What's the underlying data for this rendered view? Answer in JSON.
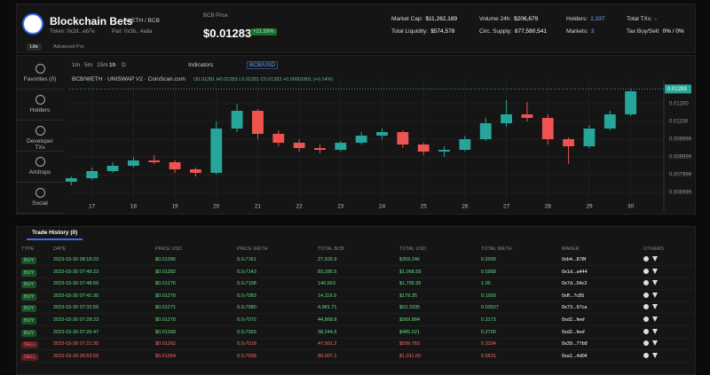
{
  "header": {
    "title": "Blockchain Bets",
    "pair": "WETH / BCB",
    "token": "Token: 0x2d...eb7e",
    "pair_address": "Pair: 0x3b...4a8a",
    "tabs": [
      "Lite",
      "Advanced",
      "Pro"
    ],
    "price_label": "BCB Price",
    "price": "$0.01283",
    "change": "+21.59%"
  },
  "stats": [
    {
      "label": "Market Cap:",
      "value": "$11,262,189"
    },
    {
      "label": "Total Liquidity:",
      "value": "$574,578"
    },
    {
      "label": "Volume 24h:",
      "value": "$206,679"
    },
    {
      "label": "Circ. Supply:",
      "value": "877,580,541"
    },
    {
      "label": "Holders:",
      "value": "2,337"
    },
    {
      "label": "Markets:",
      "value": "3"
    },
    {
      "label": "Total TXs:",
      "value": "-"
    },
    {
      "label": "Tax Buy/Sell:",
      "value": "0% / 0%"
    }
  ],
  "sidebar": [
    "Favorites (0)",
    "Holders",
    "Developer TXs",
    "Airdrops",
    "Social"
  ],
  "toolbar": {
    "intervals": [
      "1m",
      "5m",
      "15m",
      "1h",
      "D"
    ],
    "indicators": "Indicators",
    "quote": "BCB/USD"
  },
  "chart_data": {
    "type": "candlestick",
    "title": "BCB/WETH · UNISWAP V2 · CoinScan.com",
    "subtitle": "O0.01281 H0.01283 L0.01281 C0.01283 +0.00001801 (+0.14%)",
    "x": [
      16.5,
      17,
      17.5,
      18,
      18.5,
      19,
      19.5,
      20,
      20.5,
      21,
      21.5,
      22,
      22.5,
      23,
      23.5,
      24,
      24.5,
      25,
      25.5,
      26,
      26.5,
      27,
      27.5,
      28,
      28.5,
      29,
      29.5,
      30
    ],
    "open": [
      0.0076,
      0.0078,
      0.0082,
      0.0085,
      0.0088,
      0.0087,
      0.0083,
      0.0081,
      0.0106,
      0.0116,
      0.0103,
      0.0098,
      0.0095,
      0.0094,
      0.0098,
      0.0102,
      0.0104,
      0.0097,
      0.0093,
      0.0094,
      0.01,
      0.0109,
      0.0114,
      0.0112,
      0.01,
      0.0096,
      0.0106,
      0.0114
    ],
    "high": [
      0.0079,
      0.0084,
      0.0087,
      0.009,
      0.0091,
      0.0088,
      0.0084,
      0.011,
      0.012,
      0.0117,
      0.0105,
      0.01,
      0.0097,
      0.0099,
      0.0104,
      0.0106,
      0.0105,
      0.0098,
      0.0096,
      0.0102,
      0.0112,
      0.0122,
      0.0121,
      0.0114,
      0.0101,
      0.0108,
      0.0116,
      0.0128
    ],
    "low": [
      0.0074,
      0.0077,
      0.0081,
      0.0084,
      0.0086,
      0.0081,
      0.0079,
      0.008,
      0.0104,
      0.01,
      0.0096,
      0.0093,
      0.0092,
      0.0093,
      0.0097,
      0.01,
      0.0095,
      0.0091,
      0.009,
      0.0093,
      0.0099,
      0.0107,
      0.011,
      0.0097,
      0.0086,
      0.0095,
      0.0105,
      0.0113
    ],
    "close": [
      0.0078,
      0.0082,
      0.0085,
      0.0088,
      0.0087,
      0.0083,
      0.0081,
      0.0106,
      0.0116,
      0.0103,
      0.0098,
      0.0095,
      0.0094,
      0.0098,
      0.0102,
      0.0104,
      0.0097,
      0.0093,
      0.0094,
      0.01,
      0.0109,
      0.0114,
      0.0112,
      0.01,
      0.0096,
      0.0106,
      0.0114,
      0.0127
    ],
    "up_color": "#26a69a",
    "down_color": "#ef5350",
    "xlim": [
      16.45,
      30.8
    ],
    "xticks": [
      17,
      18,
      19,
      20,
      21,
      22,
      23,
      24,
      25,
      26,
      27,
      28,
      29,
      30
    ],
    "ylim": [
      0.00645,
      0.01325
    ],
    "yticks": [
      {
        "value": 0.012,
        "label": "0.01200"
      },
      {
        "value": 0.011,
        "label": "0.01100"
      },
      0.009999,
      0.008999,
      0.007999,
      0.006999
    ],
    "current_price": 0.01283,
    "grid": true
  },
  "trade_history": {
    "title": "Trade History (0)",
    "columns": [
      "TYPE",
      "DATE",
      "PRICE USD",
      "PRICE WETH",
      "TOTAL BCB",
      "TOTAL USD",
      "TOTAL WETH",
      "MAKER",
      "OTHERS"
    ],
    "rows": [
      [
        "BUY",
        "2023-03-30 08:18:23",
        "$0.01286",
        "0.0₇7161",
        "27,926.9",
        "$359.246",
        "0.2000",
        "0xb4...878f"
      ],
      [
        "BUY",
        "2023-03-30 07:49:23",
        "$0.01282",
        "0.0₇7143",
        "83,285.5",
        "$1,068.59",
        "0.5958",
        "0x1d...a444"
      ],
      [
        "BUY",
        "2023-03-30 07:48:59",
        "$0.01276",
        "0.0₇7108",
        "140,663",
        "$1,795.95",
        "1.00",
        "0x7d...04c2"
      ],
      [
        "BUY",
        "2023-03-30 07:41:35",
        "$0.01270",
        "0.0₇7083",
        "14,119.9",
        "$179.35",
        "0.1000",
        "0xff...7c85"
      ],
      [
        "BUY",
        "2023-03-30 07:32:59",
        "$0.01271",
        "0.0₇7080",
        "4,981.71",
        "$63.3335",
        "0.03527",
        "0x73...97ca"
      ],
      [
        "BUY",
        "2023-03-30 07:28:23",
        "$0.01270",
        "0.0₇7072",
        "44,868.8",
        "$569.884",
        "0.3173",
        "0xd2...feef"
      ],
      [
        "BUY",
        "2023-03-30 07:26:47",
        "$0.01268",
        "0.0₇7059",
        "38,244.6",
        "$485.021",
        "0.2700",
        "0xd2...feef"
      ],
      [
        "SELL",
        "2023-03-30 07:21:35",
        "$0.01262",
        "0.0₇7018",
        "47,501.2",
        "$599.763",
        "0.3334",
        "0x39...77b8"
      ],
      [
        "SELL",
        "2023-03-30 06:53:59",
        "$0.01264",
        "0.0₇7038",
        "80,007.1",
        "$1,011.60",
        "0.5631",
        "0xa1...4d04"
      ]
    ]
  }
}
